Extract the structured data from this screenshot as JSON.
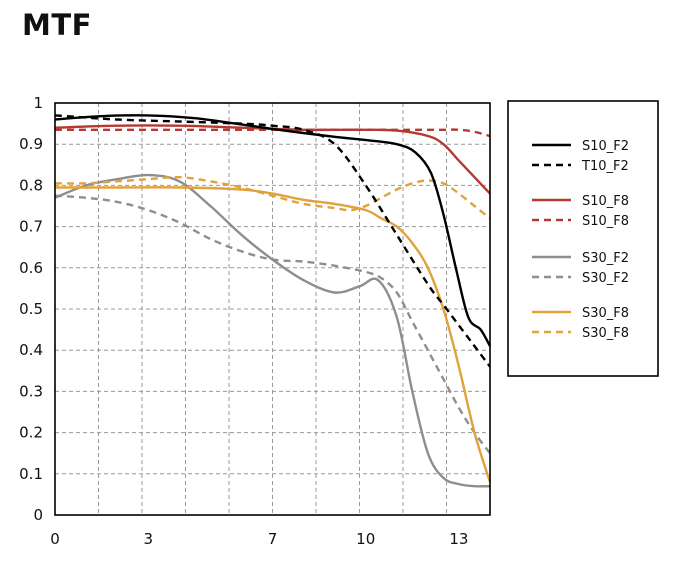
{
  "title": "MTF",
  "chart_data": {
    "type": "line",
    "title": "MTF",
    "xlabel": "",
    "ylabel": "",
    "xlim": [
      0,
      14
    ],
    "ylim": [
      0,
      1
    ],
    "x_ticks": [
      0,
      3,
      7,
      10,
      13
    ],
    "y_ticks": [
      0,
      0.1,
      0.2,
      0.3,
      0.4,
      0.5,
      0.6,
      0.7,
      0.8,
      0.9,
      1
    ],
    "y_tick_labels": [
      "0",
      "0.1",
      "0.2",
      "0.3",
      "0.4",
      "0.5",
      "0.6",
      "0.7",
      "0.8",
      "0.9",
      "1"
    ],
    "grid": true,
    "legend_position": "right",
    "series": [
      {
        "name": "S10_F2",
        "color": "#000000",
        "dash": "solid",
        "x": [
          0,
          1.5,
          3,
          4.5,
          6,
          7.5,
          9,
          10,
          11,
          11.6,
          12.1,
          12.5,
          12.9,
          13.3,
          13.7,
          14
        ],
        "y": [
          0.96,
          0.968,
          0.97,
          0.963,
          0.948,
          0.932,
          0.918,
          0.91,
          0.9,
          0.88,
          0.83,
          0.73,
          0.6,
          0.48,
          0.45,
          0.41
        ]
      },
      {
        "name": "T10_F2",
        "color": "#000000",
        "dash": "dashed",
        "x": [
          0,
          2,
          4,
          6,
          7,
          8,
          9,
          10,
          11,
          12,
          12.5,
          13,
          13.5,
          14
        ],
        "y": [
          0.97,
          0.96,
          0.955,
          0.95,
          0.945,
          0.935,
          0.9,
          0.8,
          0.68,
          0.56,
          0.51,
          0.46,
          0.41,
          0.36
        ]
      },
      {
        "name": "S10_F8",
        "color": "#b23a32",
        "dash": "solid",
        "x": [
          0,
          2,
          4,
          6,
          8,
          10,
          11,
          12,
          12.5,
          13,
          13.5,
          14
        ],
        "y": [
          0.94,
          0.945,
          0.945,
          0.94,
          0.935,
          0.935,
          0.933,
          0.92,
          0.9,
          0.86,
          0.82,
          0.78
        ]
      },
      {
        "name": "S10_F8",
        "color": "#b23a32",
        "dash": "dashed",
        "x": [
          0,
          2,
          4,
          6,
          8,
          10,
          11,
          12,
          12.5,
          13,
          13.5,
          14
        ],
        "y": [
          0.935,
          0.935,
          0.935,
          0.935,
          0.935,
          0.935,
          0.935,
          0.935,
          0.935,
          0.935,
          0.93,
          0.92
        ]
      },
      {
        "name": "S30_F2",
        "color": "#8e8e8e",
        "dash": "solid",
        "x": [
          0,
          1,
          2,
          3,
          4,
          5,
          6,
          7,
          8,
          9,
          9.8,
          10.4,
          11,
          11.5,
          12,
          12.5,
          13,
          13.5,
          14
        ],
        "y": [
          0.77,
          0.8,
          0.815,
          0.825,
          0.81,
          0.75,
          0.68,
          0.62,
          0.57,
          0.54,
          0.555,
          0.57,
          0.48,
          0.3,
          0.15,
          0.09,
          0.075,
          0.07,
          0.07
        ]
      },
      {
        "name": "S30_F2",
        "color": "#8e8e8e",
        "dash": "dashed",
        "x": [
          0,
          1,
          2,
          3,
          4,
          5,
          6,
          7,
          8,
          9,
          10,
          10.5,
          11,
          11.5,
          12,
          12.5,
          13,
          13.5,
          14
        ],
        "y": [
          0.775,
          0.77,
          0.76,
          0.74,
          0.71,
          0.67,
          0.64,
          0.62,
          0.615,
          0.605,
          0.59,
          0.575,
          0.54,
          0.47,
          0.4,
          0.33,
          0.26,
          0.2,
          0.15
        ]
      },
      {
        "name": "S30_F8",
        "color": "#e0a23a",
        "dash": "solid",
        "x": [
          0,
          2,
          4,
          6,
          7,
          8,
          9,
          10,
          10.5,
          11,
          11.5,
          12,
          12.5,
          13,
          13.5,
          14
        ],
        "y": [
          0.795,
          0.795,
          0.795,
          0.79,
          0.78,
          0.765,
          0.755,
          0.74,
          0.72,
          0.7,
          0.66,
          0.6,
          0.5,
          0.36,
          0.2,
          0.08
        ]
      },
      {
        "name": "S30_F8",
        "color": "#e0a23a",
        "dash": "dashed",
        "x": [
          0,
          1,
          2,
          3,
          4,
          5,
          6,
          7,
          8,
          9,
          9.5,
          10,
          10.5,
          11,
          11.5,
          12,
          12.5,
          13,
          13.5,
          14
        ],
        "y": [
          0.805,
          0.805,
          0.81,
          0.815,
          0.82,
          0.81,
          0.795,
          0.775,
          0.755,
          0.745,
          0.74,
          0.75,
          0.77,
          0.79,
          0.805,
          0.812,
          0.805,
          0.78,
          0.75,
          0.72
        ]
      }
    ]
  }
}
